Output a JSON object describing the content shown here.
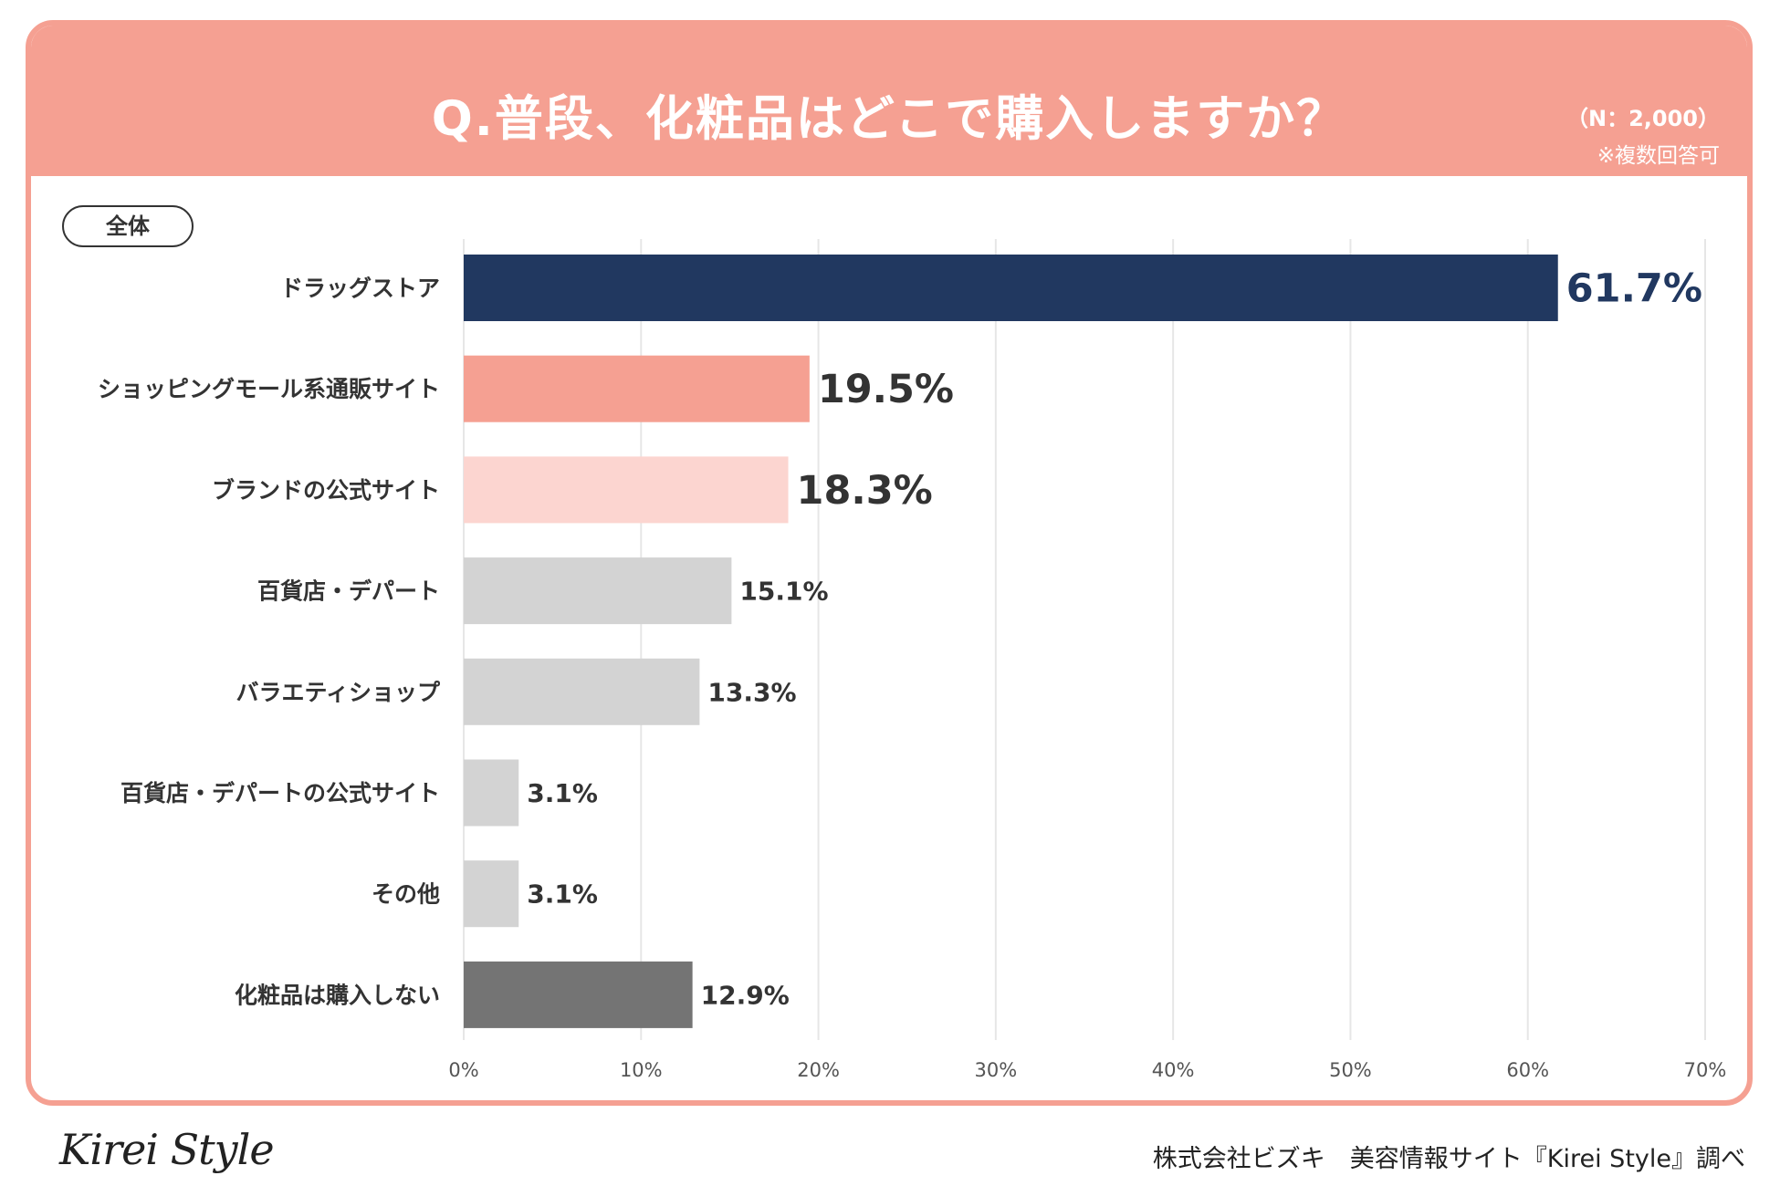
{
  "header": {
    "title": "Q.普段、化粧品はどこで購入しますか？",
    "n_label": "（N：2,000）",
    "note": "※複数回答可"
  },
  "segment_label": "全体",
  "colors": {
    "header": "#f5a092",
    "highlight": "#213860",
    "coral": "#f5a092",
    "light_pink": "#fcd5d0",
    "gray": "#d3d3d3",
    "dark_gray": "#747474",
    "label_text": "#333333",
    "grid": "#e6e6e6"
  },
  "chart_data": {
    "type": "bar",
    "orientation": "horizontal",
    "title": "Q.普段、化粧品はどこで購入しますか？",
    "xlabel": "",
    "ylabel": "",
    "xlim": [
      0,
      70
    ],
    "ticks": [
      0,
      10,
      20,
      30,
      40,
      50,
      60,
      70
    ],
    "tick_labels": [
      "0%",
      "10%",
      "20%",
      "30%",
      "40%",
      "50%",
      "60%",
      "70%"
    ],
    "grid": true,
    "categories": [
      "ドラッグストア",
      "ショッピングモール系通販サイト",
      "ブランドの公式サイト",
      "百貨店・デパート",
      "バラエティショップ",
      "百貨店・デパートの公式サイト",
      "その他",
      "化粧品は購入しない"
    ],
    "values": [
      61.7,
      19.5,
      18.3,
      15.1,
      13.3,
      3.1,
      3.1,
      12.9
    ],
    "value_labels": [
      "61.7%",
      "19.5%",
      "18.3%",
      "15.1%",
      "13.3%",
      "3.1%",
      "3.1%",
      "12.9%"
    ],
    "bar_colors": [
      "#213860",
      "#f5a092",
      "#fcd5d0",
      "#d3d3d3",
      "#d3d3d3",
      "#d3d3d3",
      "#d3d3d3",
      "#747474"
    ],
    "emphasis": [
      "large",
      "large",
      "large",
      "normal",
      "normal",
      "normal",
      "normal",
      "normal"
    ]
  },
  "footer": {
    "logo": "Kirei Style",
    "credit": "株式会社ビズキ　美容情報サイト『Kirei Style』調べ"
  }
}
